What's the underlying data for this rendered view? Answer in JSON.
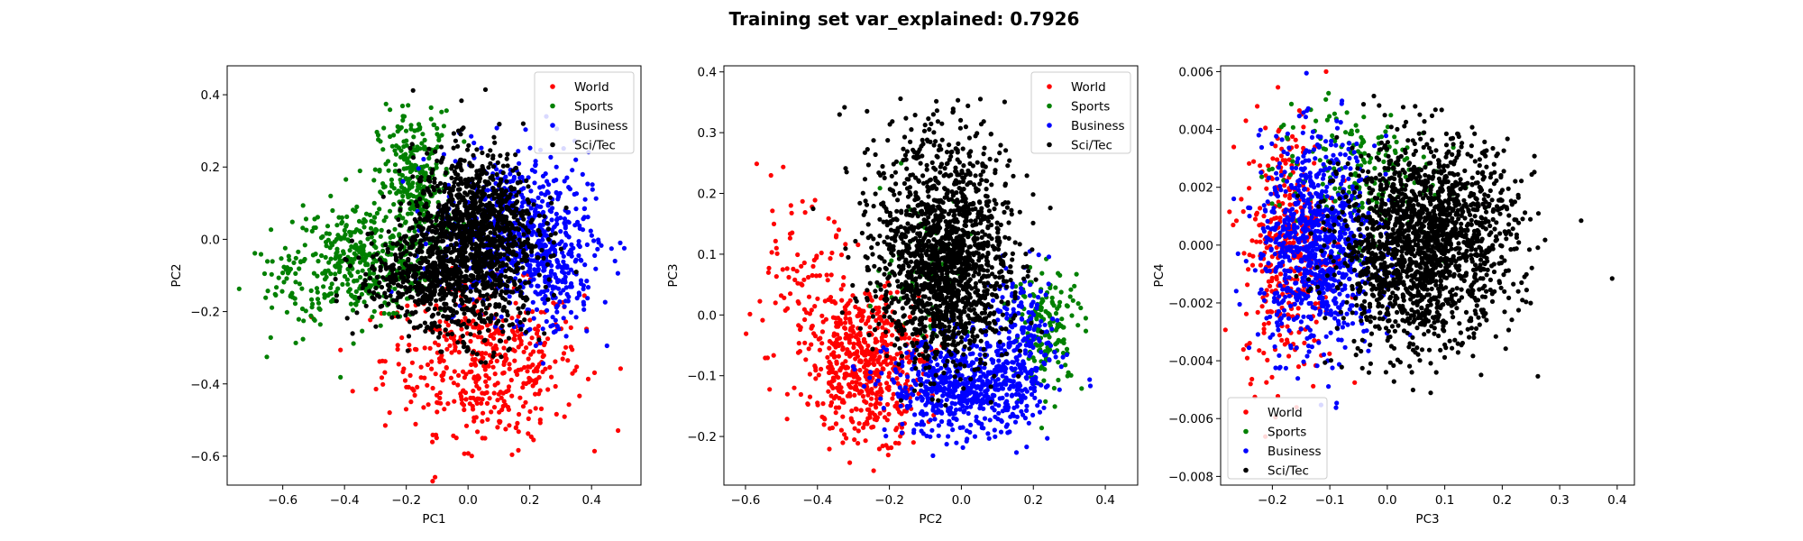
{
  "figure": {
    "title": "Training set var_explained: 0.7926"
  },
  "chart_data": [
    {
      "type": "scatter",
      "xlabel": "PC1",
      "ylabel": "PC2",
      "xlim": [
        -0.78,
        0.56
      ],
      "ylim": [
        -0.68,
        0.48
      ],
      "xticks": [
        -0.6,
        -0.4,
        -0.2,
        0.0,
        0.2,
        0.4
      ],
      "xtick_labels": [
        "−0.6",
        "−0.4",
        "−0.2",
        "0.0",
        "0.2",
        "0.4"
      ],
      "yticks": [
        -0.6,
        -0.4,
        -0.2,
        0.0,
        0.2,
        0.4
      ],
      "ytick_labels": [
        "−0.6",
        "−0.4",
        "−0.2",
        "0.0",
        "0.2",
        "0.4"
      ],
      "legend_loc": "upper right",
      "series": [
        {
          "name": "World",
          "color": "#ff0000",
          "clusters": [
            {
              "cx": 0.05,
              "cy": -0.33,
              "sx": 0.16,
              "sy": 0.1,
              "n": 420
            },
            {
              "cx": 0.12,
              "cy": -0.48,
              "sx": 0.1,
              "sy": 0.07,
              "n": 50
            }
          ]
        },
        {
          "name": "Sports",
          "color": "#008000",
          "clusters": [
            {
              "cx": -0.35,
              "cy": -0.06,
              "sx": 0.11,
              "sy": 0.08,
              "n": 350
            },
            {
              "cx": -0.17,
              "cy": 0.15,
              "sx": 0.06,
              "sy": 0.1,
              "n": 300
            },
            {
              "cx": -0.55,
              "cy": -0.12,
              "sx": 0.08,
              "sy": 0.07,
              "n": 60
            }
          ]
        },
        {
          "name": "Business",
          "color": "#0000ff",
          "clusters": [
            {
              "cx": 0.15,
              "cy": 0.02,
              "sx": 0.12,
              "sy": 0.11,
              "n": 600
            },
            {
              "cx": 0.28,
              "cy": -0.1,
              "sx": 0.06,
              "sy": 0.09,
              "n": 150
            }
          ]
        },
        {
          "name": "Sci/Tec",
          "color": "#000000",
          "clusters": [
            {
              "cx": 0.02,
              "cy": 0.02,
              "sx": 0.1,
              "sy": 0.11,
              "n": 1100
            },
            {
              "cx": -0.15,
              "cy": -0.1,
              "sx": 0.1,
              "sy": 0.06,
              "n": 400
            },
            {
              "cx": 0.0,
              "cy": -0.22,
              "sx": 0.1,
              "sy": 0.05,
              "n": 120
            }
          ]
        }
      ]
    },
    {
      "type": "scatter",
      "xlabel": "PC2",
      "ylabel": "PC3",
      "xlim": [
        -0.66,
        0.49
      ],
      "ylim": [
        -0.28,
        0.41
      ],
      "xticks": [
        -0.6,
        -0.4,
        -0.2,
        0.0,
        0.2,
        0.4
      ],
      "xtick_labels": [
        "−0.6",
        "−0.4",
        "−0.2",
        "0.0",
        "0.2",
        "0.4"
      ],
      "yticks": [
        -0.2,
        -0.1,
        0.0,
        0.1,
        0.2,
        0.3,
        0.4
      ],
      "ytick_labels": [
        "−0.2",
        "−0.1",
        "0.0",
        "0.1",
        "0.2",
        "0.3",
        "0.4"
      ],
      "legend_loc": "upper right",
      "series": [
        {
          "name": "World",
          "color": "#ff0000",
          "clusters": [
            {
              "cx": -0.26,
              "cy": -0.08,
              "sx": 0.08,
              "sy": 0.06,
              "n": 550
            },
            {
              "cx": -0.45,
              "cy": 0.02,
              "sx": 0.08,
              "sy": 0.08,
              "n": 110
            }
          ]
        },
        {
          "name": "Sports",
          "color": "#008000",
          "clusters": [
            {
              "cx": 0.24,
              "cy": -0.02,
              "sx": 0.05,
              "sy": 0.05,
              "n": 160
            },
            {
              "cx": -0.1,
              "cy": 0.08,
              "sx": 0.06,
              "sy": 0.06,
              "n": 60
            }
          ]
        },
        {
          "name": "Business",
          "color": "#0000ff",
          "clusters": [
            {
              "cx": 0.0,
              "cy": -0.12,
              "sx": 0.1,
              "sy": 0.04,
              "n": 600
            },
            {
              "cx": 0.17,
              "cy": -0.05,
              "sx": 0.05,
              "sy": 0.06,
              "n": 220
            }
          ]
        },
        {
          "name": "Sci/Tec",
          "color": "#000000",
          "clusters": [
            {
              "cx": -0.05,
              "cy": 0.08,
              "sx": 0.09,
              "sy": 0.08,
              "n": 1500
            },
            {
              "cx": -0.08,
              "cy": 0.25,
              "sx": 0.1,
              "sy": 0.05,
              "n": 150
            }
          ]
        }
      ]
    },
    {
      "type": "scatter",
      "xlabel": "PC3",
      "ylabel": "PC4",
      "xlim": [
        -0.29,
        0.43
      ],
      "ylim": [
        -0.0083,
        0.0062
      ],
      "xticks": [
        -0.2,
        -0.1,
        0.0,
        0.1,
        0.2,
        0.3,
        0.4
      ],
      "xtick_labels": [
        "−0.2",
        "−0.1",
        "0.0",
        "0.1",
        "0.2",
        "0.3",
        "0.4"
      ],
      "yticks": [
        -0.008,
        -0.006,
        -0.004,
        -0.002,
        0.0,
        0.002,
        0.004,
        0.006
      ],
      "ytick_labels": [
        "−0.008",
        "−0.006",
        "−0.004",
        "−0.002",
        "0.000",
        "0.002",
        "0.004",
        "0.006"
      ],
      "legend_loc": "lower left",
      "series": [
        {
          "name": "World",
          "color": "#ff0000",
          "clusters": [
            {
              "cx": -0.17,
              "cy": 0.0,
              "sx": 0.04,
              "sy": 0.0022,
              "n": 400
            }
          ]
        },
        {
          "name": "Sports",
          "color": "#008000",
          "clusters": [
            {
              "cx": -0.06,
              "cy": 0.0025,
              "sx": 0.07,
              "sy": 0.0012,
              "n": 200
            }
          ]
        },
        {
          "name": "Business",
          "color": "#0000ff",
          "clusters": [
            {
              "cx": -0.12,
              "cy": 0.0,
              "sx": 0.05,
              "sy": 0.0018,
              "n": 900
            }
          ]
        },
        {
          "name": "Sci/Tec",
          "color": "#000000",
          "clusters": [
            {
              "cx": 0.07,
              "cy": 0.0003,
              "sx": 0.075,
              "sy": 0.0016,
              "n": 1600
            },
            {
              "cx": 0.02,
              "cy": -0.002,
              "sx": 0.06,
              "sy": 0.0012,
              "n": 200
            }
          ]
        }
      ]
    }
  ]
}
